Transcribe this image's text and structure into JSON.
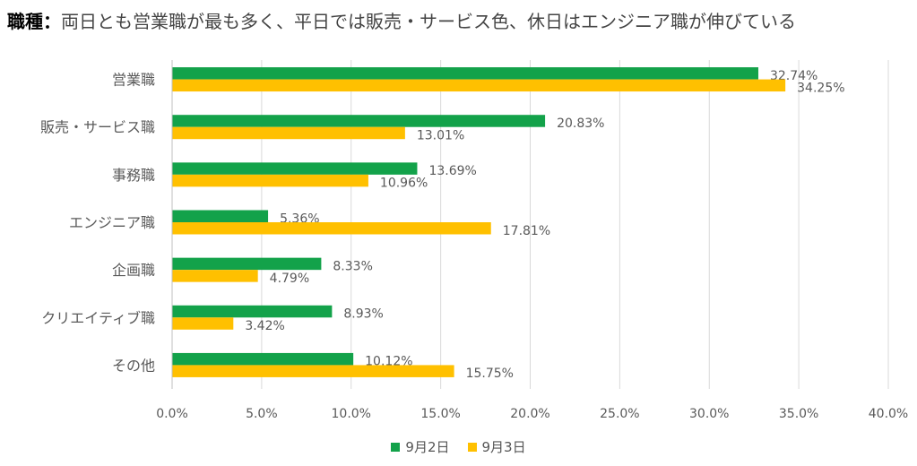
{
  "title": {
    "bold": "職種",
    "colon": "：",
    "rest": "両日とも営業職が最も多く、平日では販売・サービス色、休日はエンジニア職が伸びている"
  },
  "chart_data": {
    "type": "bar",
    "orientation": "horizontal",
    "categories": [
      "営業職",
      "販売・サービス職",
      "事務職",
      "エンジニア職",
      "企画職",
      "クリエイティブ職",
      "その他"
    ],
    "series": [
      {
        "name": "9月2日",
        "color": "#13A24A",
        "values": [
          32.74,
          20.83,
          13.69,
          5.36,
          8.33,
          8.93,
          10.12
        ]
      },
      {
        "name": "9月3日",
        "color": "#FFC000",
        "values": [
          34.25,
          13.01,
          10.96,
          17.81,
          4.79,
          3.42,
          15.75
        ]
      }
    ],
    "value_labels": [
      [
        "32.74%",
        "20.83%",
        "13.69%",
        "5.36%",
        "8.33%",
        "8.93%",
        "10.12%"
      ],
      [
        "34.25%",
        "13.01%",
        "10.96%",
        "17.81%",
        "4.79%",
        "3.42%",
        "15.75%"
      ]
    ],
    "xlim": [
      0,
      40
    ],
    "xticks": [
      0,
      5,
      10,
      15,
      20,
      25,
      30,
      35,
      40
    ],
    "xtick_labels": [
      "0.0%",
      "5.0%",
      "10.0%",
      "15.0%",
      "20.0%",
      "25.0%",
      "30.0%",
      "35.0%",
      "40.0%"
    ],
    "grid": true,
    "legend_position": "bottom"
  }
}
